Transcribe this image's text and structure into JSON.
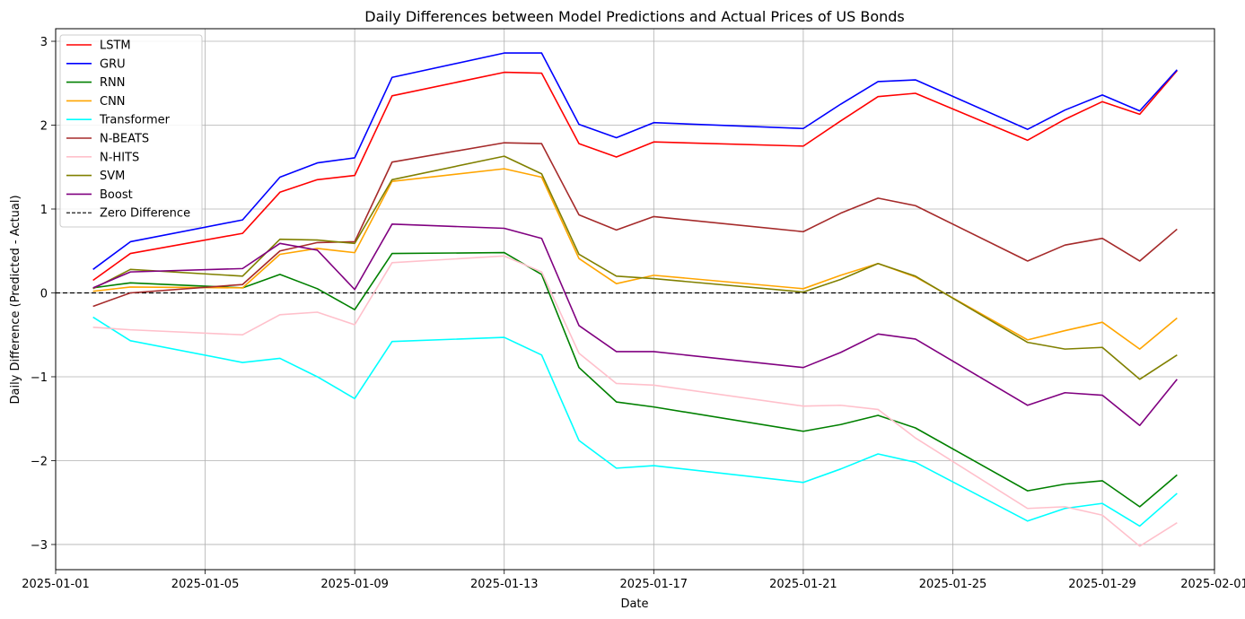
{
  "chart_data": {
    "type": "line",
    "title": "Daily Differences between Model Predictions and Actual Prices of US Bonds",
    "xlabel": "Date",
    "ylabel": "Daily Difference (Predicted - Actual)",
    "x_type": "date",
    "xlim": [
      "2025-01-01",
      "2025-02-01"
    ],
    "ylim": [
      -3.3,
      3.15
    ],
    "x_ticks": [
      "2025-01-01",
      "2025-01-05",
      "2025-01-09",
      "2025-01-13",
      "2025-01-17",
      "2025-01-21",
      "2025-01-25",
      "2025-01-29",
      "2025-02-01"
    ],
    "y_ticks": [
      -3,
      -2,
      -1,
      0,
      1,
      2,
      3
    ],
    "grid": true,
    "legend_position": "upper-left",
    "x": [
      "2025-01-02",
      "2025-01-03",
      "2025-01-06",
      "2025-01-07",
      "2025-01-08",
      "2025-01-09",
      "2025-01-10",
      "2025-01-13",
      "2025-01-14",
      "2025-01-15",
      "2025-01-16",
      "2025-01-17",
      "2025-01-21",
      "2025-01-22",
      "2025-01-23",
      "2025-01-24",
      "2025-01-27",
      "2025-01-28",
      "2025-01-29",
      "2025-01-30",
      "2025-01-31"
    ],
    "series": [
      {
        "name": "LSTM",
        "color": "#ff0000",
        "values": [
          0.15,
          0.47,
          0.71,
          1.2,
          1.35,
          1.4,
          2.35,
          2.63,
          2.62,
          1.78,
          1.62,
          1.8,
          1.75,
          2.05,
          2.34,
          2.38,
          1.82,
          2.07,
          2.28,
          2.13,
          2.65
        ]
      },
      {
        "name": "GRU",
        "color": "#0000ff",
        "values": [
          0.28,
          0.61,
          0.87,
          1.38,
          1.55,
          1.61,
          2.57,
          2.86,
          2.86,
          2.01,
          1.85,
          2.03,
          1.96,
          2.25,
          2.52,
          2.54,
          1.95,
          2.18,
          2.36,
          2.17,
          2.66
        ]
      },
      {
        "name": "RNN",
        "color": "#008000",
        "values": [
          0.06,
          0.12,
          0.06,
          0.22,
          0.05,
          -0.2,
          0.47,
          0.48,
          0.22,
          -0.89,
          -1.3,
          -1.36,
          -1.65,
          -1.57,
          -1.46,
          -1.61,
          -2.36,
          -2.28,
          -2.24,
          -2.55,
          -2.17
        ]
      },
      {
        "name": "CNN",
        "color": "#ffa500",
        "values": [
          0.02,
          0.07,
          0.06,
          0.46,
          0.53,
          0.48,
          1.33,
          1.48,
          1.38,
          0.41,
          0.11,
          0.21,
          0.05,
          0.21,
          0.35,
          0.19,
          -0.56,
          -0.45,
          -0.35,
          -0.67,
          -0.3
        ]
      },
      {
        "name": "Transformer",
        "color": "#00ffff",
        "values": [
          -0.29,
          -0.57,
          -0.83,
          -0.78,
          -1.0,
          -1.26,
          -0.58,
          -0.53,
          -0.74,
          -1.76,
          -2.09,
          -2.06,
          -2.26,
          -2.1,
          -1.92,
          -2.02,
          -2.72,
          -2.57,
          -2.51,
          -2.78,
          -2.39
        ]
      },
      {
        "name": "N-BEATS",
        "color": "#a52a2a",
        "values": [
          -0.16,
          0.0,
          0.1,
          0.5,
          0.6,
          0.61,
          1.56,
          1.79,
          1.78,
          0.93,
          0.75,
          0.91,
          0.73,
          0.95,
          1.13,
          1.04,
          0.38,
          0.57,
          0.65,
          0.38,
          0.76
        ]
      },
      {
        "name": "N-HITS",
        "color": "#ffc0cb",
        "values": [
          -0.41,
          -0.44,
          -0.5,
          -0.26,
          -0.23,
          -0.38,
          0.36,
          0.44,
          0.25,
          -0.72,
          -1.08,
          -1.1,
          -1.35,
          -1.34,
          -1.39,
          -1.73,
          -2.57,
          -2.55,
          -2.65,
          -3.02,
          -2.74
        ]
      },
      {
        "name": "SVM",
        "color": "#808000",
        "values": [
          0.05,
          0.28,
          0.2,
          0.64,
          0.63,
          0.59,
          1.35,
          1.63,
          1.42,
          0.46,
          0.2,
          0.17,
          0.01,
          0.16,
          0.35,
          0.2,
          -0.59,
          -0.67,
          -0.65,
          -1.03,
          -0.74
        ]
      },
      {
        "name": "Boost",
        "color": "#800080",
        "values": [
          0.06,
          0.25,
          0.29,
          0.59,
          0.51,
          0.04,
          0.82,
          0.77,
          0.65,
          -0.39,
          -0.7,
          -0.7,
          -0.89,
          -0.71,
          -0.49,
          -0.55,
          -1.34,
          -1.19,
          -1.22,
          -1.58,
          -1.03
        ]
      }
    ],
    "reference_line": {
      "name": "Zero Difference",
      "y": 0,
      "color": "#000000",
      "style": "dashed"
    }
  }
}
